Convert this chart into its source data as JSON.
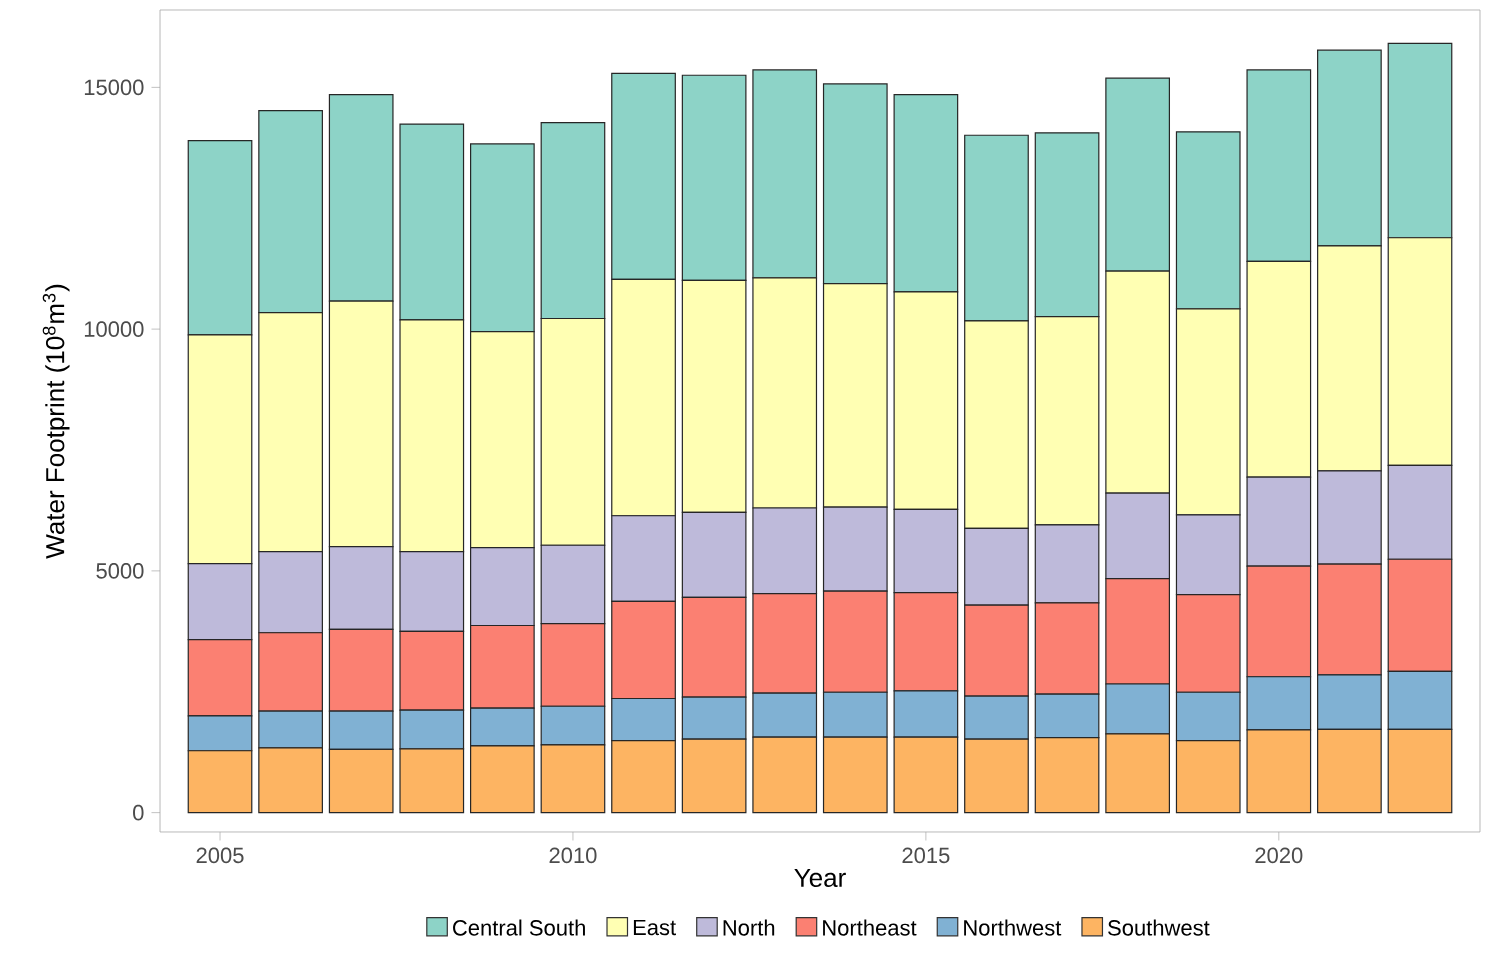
{
  "chart_data": {
    "type": "bar",
    "stacked": true,
    "xlabel": "Year",
    "ylabel": "Water Footprint (10$^{8}$m$^{3}$)",
    "x": [
      2005,
      2006,
      2007,
      2008,
      2009,
      2010,
      2011,
      2012,
      2013,
      2014,
      2015,
      2016,
      2017,
      2018,
      2019,
      2020,
      2021,
      2022
    ],
    "xlim": [
      2004.15,
      2022.85
    ],
    "xticks": [
      2005,
      2010,
      2015,
      2020
    ],
    "ylim": [
      -400,
      16600
    ],
    "yticks": [
      0,
      5000,
      10000,
      15000
    ],
    "grid": false,
    "legend": "bottom",
    "series": [
      {
        "name": "Southwest",
        "color": "#fdb462",
        "values": [
          1280,
          1340,
          1310,
          1320,
          1380,
          1400,
          1490,
          1520,
          1560,
          1560,
          1560,
          1520,
          1550,
          1630,
          1490,
          1710,
          1720,
          1720
        ]
      },
      {
        "name": "Northwest",
        "color": "#80b1d3",
        "values": [
          720,
          760,
          790,
          800,
          780,
          800,
          870,
          870,
          910,
          930,
          960,
          890,
          900,
          1030,
          1000,
          1100,
          1130,
          1200
        ]
      },
      {
        "name": "Northeast",
        "color": "#fb8072",
        "values": [
          1580,
          1620,
          1690,
          1630,
          1710,
          1710,
          2010,
          2060,
          2060,
          2090,
          2030,
          1880,
          1890,
          2180,
          2020,
          2290,
          2290,
          2320
        ]
      },
      {
        "name": "North",
        "color": "#bebada",
        "values": [
          1570,
          1680,
          1710,
          1650,
          1610,
          1620,
          1770,
          1760,
          1770,
          1740,
          1720,
          1590,
          1610,
          1770,
          1650,
          1840,
          1930,
          1940
        ]
      },
      {
        "name": "East",
        "color": "#ffffb3",
        "values": [
          4730,
          4940,
          5080,
          4790,
          4470,
          4690,
          4890,
          4800,
          4760,
          4620,
          4500,
          4290,
          4310,
          4590,
          4260,
          4460,
          4650,
          4710
        ]
      },
      {
        "name": "Central South",
        "color": "#8dd3c7",
        "values": [
          4020,
          4180,
          4270,
          4050,
          3880,
          4050,
          4260,
          4240,
          4300,
          4130,
          4080,
          3840,
          3800,
          3990,
          3660,
          3960,
          4050,
          4020
        ]
      }
    ]
  }
}
